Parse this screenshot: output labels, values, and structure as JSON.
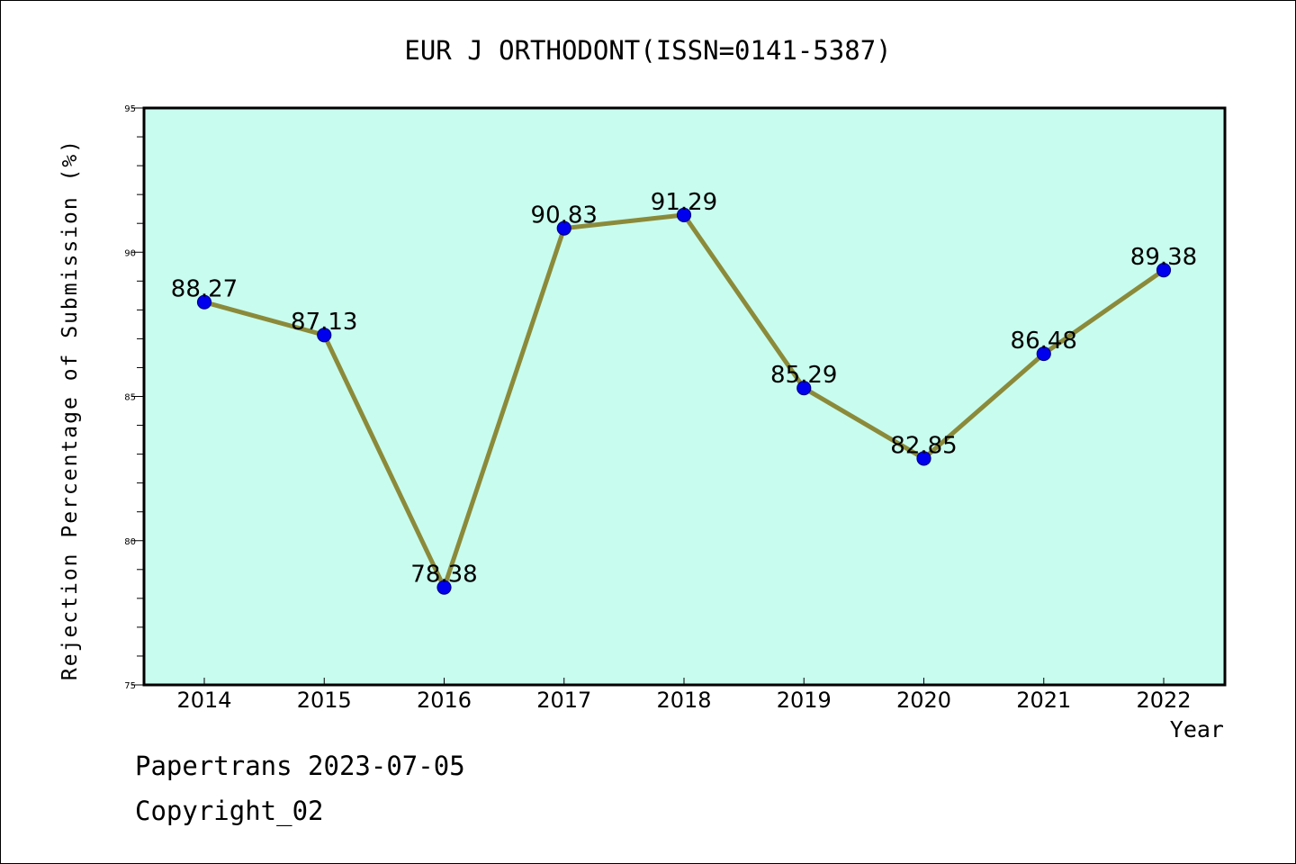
{
  "chart_data": {
    "type": "line",
    "title": "EUR J ORTHODONT(ISSN=0141-5387)",
    "xlabel": "Year",
    "ylabel": "Rejection Percentage of Submission (%)",
    "categories": [
      "2014",
      "2015",
      "2016",
      "2017",
      "2018",
      "2019",
      "2020",
      "2021",
      "2022"
    ],
    "series": [
      {
        "values": [
          88.27,
          87.13,
          78.38,
          90.83,
          91.29,
          85.29,
          82.85,
          86.48,
          89.38
        ],
        "data_labels": [
          "88.27",
          "87.13",
          "78.38",
          "90.83",
          "91.29",
          "85.29",
          "82.85",
          "86.48",
          "89.38"
        ]
      }
    ],
    "ylim": [
      75,
      95
    ],
    "yticks": [
      {
        "value": 75,
        "label": "75"
      },
      {
        "value": 80,
        "label": "80"
      },
      {
        "value": 85,
        "label": "85"
      },
      {
        "value": 90,
        "label": "90"
      },
      {
        "value": 95,
        "label": "95"
      }
    ],
    "y_minor_step": 1,
    "grid": false,
    "colors": {
      "plot_background": "#c8fcee",
      "line": "#8b8a3a",
      "marker": "#0000ee",
      "marker_stroke": "#00008b"
    }
  },
  "footer": {
    "line1": "Papertrans 2023-07-05",
    "line2": "Copyright_02"
  }
}
